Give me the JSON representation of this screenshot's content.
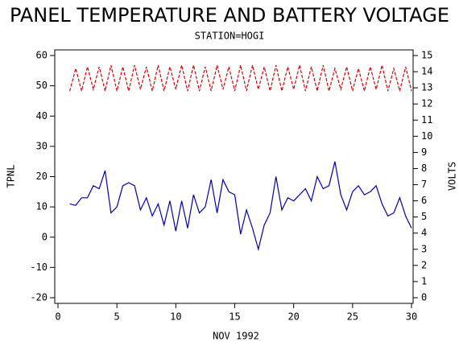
{
  "chart_data": {
    "type": "line",
    "title": "PANEL TEMPERATURE AND BATTERY VOLTAGE",
    "subtitle": "STATION=HOGI",
    "xlabel": "NOV 1992",
    "ylabel": "TPNL",
    "y2label": "VOLTS",
    "x": [
      1,
      1.5,
      2,
      2.5,
      3,
      3.5,
      4,
      4.5,
      5,
      5.5,
      6,
      6.5,
      7,
      7.5,
      8,
      8.5,
      9,
      9.5,
      10,
      10.5,
      11,
      11.5,
      12,
      12.5,
      13,
      13.5,
      14,
      14.5,
      15,
      15.5,
      16,
      16.5,
      17,
      17.5,
      18,
      18.5,
      19,
      19.5,
      20,
      20.5,
      21,
      21.5,
      22,
      22.5,
      23,
      23.5,
      24,
      24.5,
      25,
      25.5,
      26,
      26.5,
      27,
      27.5,
      28,
      28.5,
      29,
      29.5,
      30
    ],
    "series": [
      {
        "color": "#0000aa",
        "axis": "y",
        "dashed": false,
        "values": [
          11,
          10.5,
          13,
          13,
          17,
          16,
          22,
          8,
          10,
          17,
          18,
          17,
          9,
          13,
          7,
          11,
          4,
          12,
          2,
          12,
          3,
          14,
          8,
          10,
          19,
          8,
          19,
          15,
          14,
          1,
          9,
          3,
          -4,
          4,
          8,
          20,
          9,
          13,
          12,
          14,
          16,
          12,
          20,
          16,
          17,
          25,
          14,
          9,
          15,
          17,
          14,
          15,
          17,
          11,
          7,
          8,
          13,
          7,
          3
        ]
      },
      {
        "color": "#dd0000",
        "axis": "y2",
        "dashed": true,
        "values": [
          12.8,
          14.2,
          12.8,
          14.3,
          12.9,
          14.3,
          12.8,
          14.4,
          12.8,
          14.3,
          12.8,
          14.4,
          12.9,
          14.3,
          12.8,
          14.4,
          12.8,
          14.3,
          12.9,
          14.4,
          12.8,
          14.4,
          12.8,
          14.3,
          12.8,
          14.4,
          12.9,
          14.3,
          12.8,
          14.4,
          12.8,
          14.4,
          12.9,
          14.3,
          12.8,
          14.4,
          12.8,
          14.3,
          12.9,
          14.4,
          12.8,
          14.3,
          12.8,
          14.4,
          12.8,
          14.2,
          12.9,
          14.3,
          12.8,
          14.2,
          12.8,
          14.3,
          12.9,
          14.4,
          12.8,
          14.2,
          12.8,
          14.3,
          12.8
        ]
      }
    ],
    "xlim": [
      0,
      30
    ],
    "xticks": [
      0,
      5,
      10,
      15,
      20,
      25,
      30
    ],
    "ylim": [
      -20,
      60
    ],
    "yticks": [
      -20,
      -10,
      0,
      10,
      20,
      30,
      40,
      50,
      60
    ],
    "y2lim": [
      0,
      15
    ],
    "y2ticks": [
      0,
      1,
      2,
      3,
      4,
      5,
      6,
      7,
      8,
      9,
      10,
      11,
      12,
      13,
      14,
      15
    ]
  }
}
